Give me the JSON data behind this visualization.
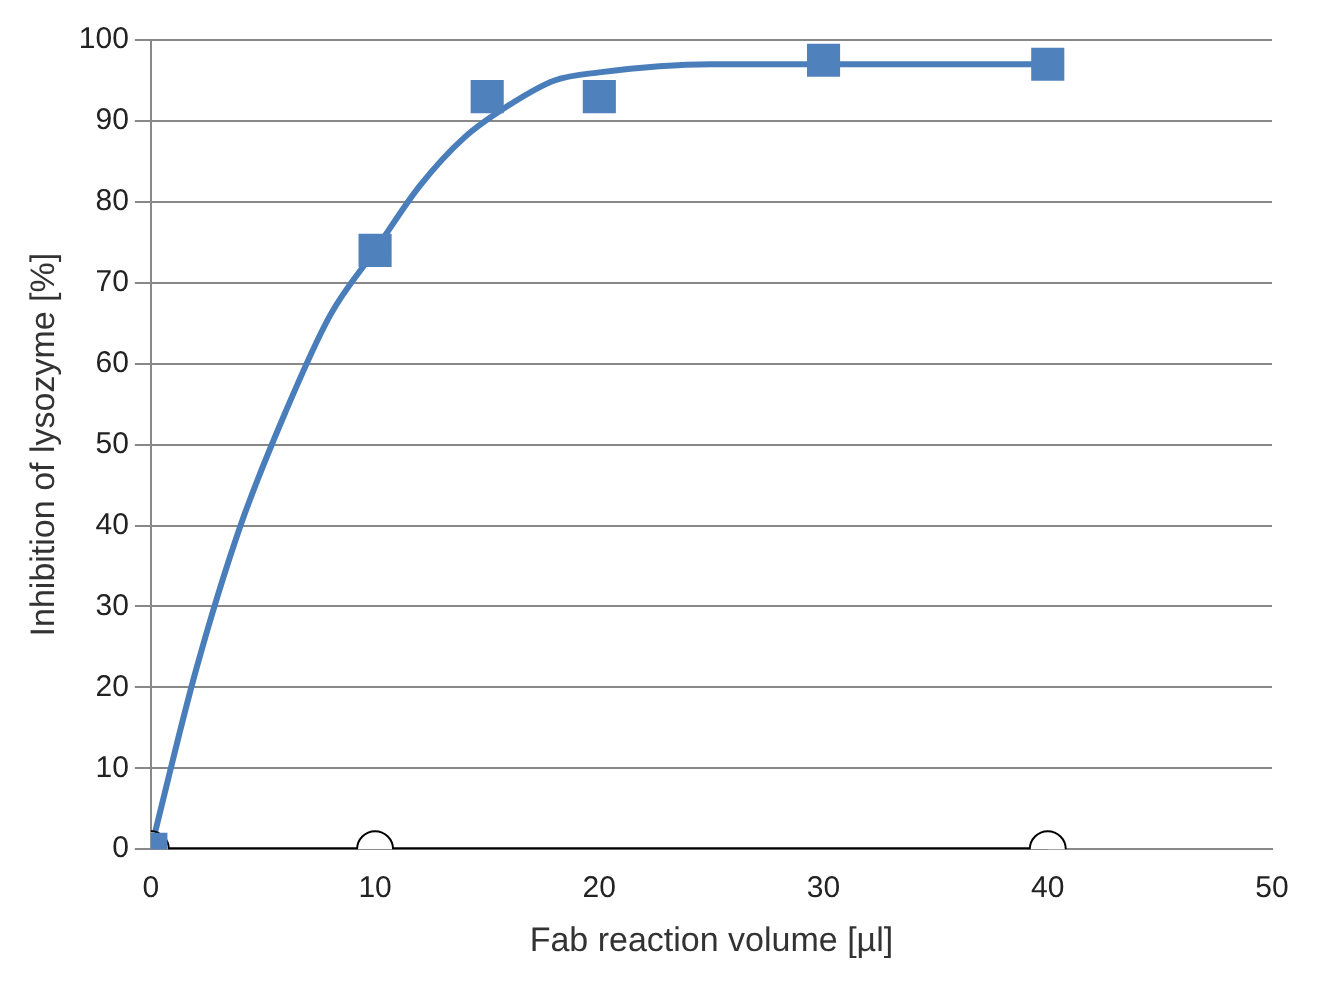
{
  "chart_data": {
    "type": "scatter",
    "xlabel": "Fab reaction volume [µl]",
    "ylabel": "Inhibition of lysozyme [%]",
    "xlim": [
      0,
      50
    ],
    "xticks": [
      0,
      10,
      20,
      30,
      40,
      50
    ],
    "ylim": [
      0,
      100
    ],
    "yticks": [
      0,
      10,
      20,
      30,
      40,
      50,
      60,
      70,
      80,
      90,
      100
    ],
    "grid": "y",
    "legend": false,
    "series": [
      {
        "type": "line",
        "color": "#4a7ebb",
        "marker": "none",
        "x": [
          0,
          2,
          4,
          6,
          8,
          10,
          12,
          14,
          16,
          18,
          20,
          25,
          30,
          35,
          40
        ],
        "values": [
          0,
          22,
          40,
          54,
          66,
          74,
          82,
          88,
          92,
          95,
          96,
          97,
          97,
          97,
          97
        ]
      },
      {
        "type": "line",
        "color": "#000000",
        "marker": "circle",
        "x": [
          0,
          10,
          40
        ],
        "values": [
          0,
          0,
          0
        ]
      },
      {
        "color": "#4f81bd",
        "marker": "square",
        "x": [
          0,
          10,
          15,
          20,
          30,
          40
        ],
        "values": [
          0,
          74,
          93,
          93,
          97.5,
          97
        ]
      }
    ]
  }
}
